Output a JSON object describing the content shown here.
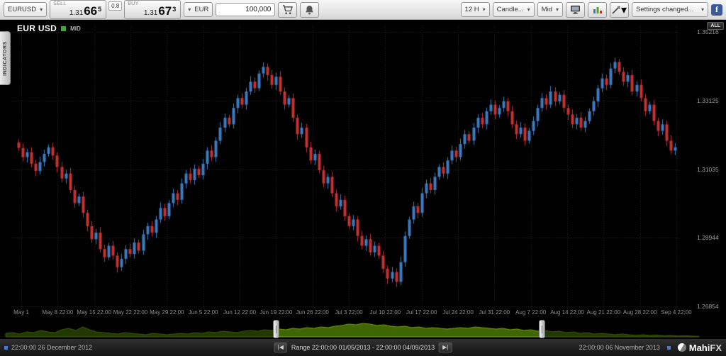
{
  "toolbar": {
    "symbol": "EURUSD",
    "sell": {
      "label": "SELL",
      "prefix": "1.31",
      "big": "66",
      "sup": "5"
    },
    "spread": "0.8",
    "buy": {
      "label": "BUY",
      "prefix": "1.31",
      "big": "67",
      "sup": "3"
    },
    "currency": "EUR",
    "amount": "100,000",
    "interval": "12 H",
    "chart_type": "Candle...",
    "price_type": "Mid",
    "settings": "Settings changed...",
    "facebook_letter": "f"
  },
  "chart": {
    "title": "EUR USD",
    "badge": "MID",
    "all_button": "ALL",
    "indicators_tab": "INDICATORS"
  },
  "chart_data": {
    "type": "candlestick",
    "title": "EUR USD",
    "interval": "12 H",
    "price_type": "Mid",
    "ylim": [
      1.26854,
      1.35216
    ],
    "y_ticks": [
      1.35216,
      1.33125,
      1.31035,
      1.28944,
      1.26854
    ],
    "x_tick_labels": [
      "May 1",
      "May 8 22:00",
      "May 15 22:00",
      "May 22 22:00",
      "May 29 22:00",
      "Jun 5 22:00",
      "Jun 12 22:00",
      "Jun 19 22:00",
      "Jun 26 22:00",
      "Jul 3 22:00",
      "Jul 10 22:00",
      "Jul 17 22:00",
      "Jul 24 22:00",
      "Jul 31 22:00",
      "Aug 7 22:00",
      "Aug 14 22:00",
      "Aug 21 22:00",
      "Aug 28 22:00",
      "Sep 4 22:00"
    ],
    "up_color": "#3d7cc2",
    "down_color": "#c63232",
    "first_open": 1.3185,
    "closes": [
      1.3168,
      1.314,
      1.3155,
      1.312,
      1.3098,
      1.3125,
      1.315,
      1.317,
      1.3145,
      1.311,
      1.3075,
      1.309,
      1.304,
      1.3,
      1.302,
      1.297,
      1.293,
      1.289,
      1.291,
      1.286,
      1.2835,
      1.287,
      1.284,
      1.2805,
      1.283,
      1.286,
      1.2845,
      1.288,
      1.2855,
      1.2905,
      1.293,
      1.291,
      1.295,
      1.2985,
      1.296,
      1.3,
      1.303,
      1.301,
      1.306,
      1.309,
      1.307,
      1.3105,
      1.3085,
      1.312,
      1.316,
      1.314,
      1.319,
      1.323,
      1.326,
      1.324,
      1.329,
      1.332,
      1.33,
      1.334,
      1.337,
      1.335,
      1.3395,
      1.3415,
      1.339,
      1.336,
      1.3385,
      1.334,
      1.33,
      1.332,
      1.326,
      1.321,
      1.323,
      1.317,
      1.313,
      1.315,
      1.31,
      1.306,
      1.308,
      1.303,
      1.299,
      1.301,
      1.296,
      1.293,
      1.295,
      1.29,
      1.287,
      1.289,
      1.285,
      1.287,
      1.284,
      1.28,
      1.277,
      1.279,
      1.276,
      1.282,
      1.29,
      1.295,
      1.299,
      1.297,
      1.303,
      1.306,
      1.304,
      1.308,
      1.311,
      1.309,
      1.313,
      1.316,
      1.314,
      1.318,
      1.321,
      1.319,
      1.323,
      1.326,
      1.324,
      1.328,
      1.33,
      1.327,
      1.329,
      1.331,
      1.328,
      1.324,
      1.321,
      1.323,
      1.319,
      1.322,
      1.325,
      1.329,
      1.332,
      1.33,
      1.334,
      1.331,
      1.333,
      1.329,
      1.327,
      1.324,
      1.326,
      1.323,
      1.325,
      1.328,
      1.331,
      1.335,
      1.338,
      1.336,
      1.341,
      1.343,
      1.34,
      1.337,
      1.339,
      1.334,
      1.336,
      1.332,
      1.328,
      1.33,
      1.325,
      1.322,
      1.324,
      1.319,
      1.316,
      1.317
    ]
  },
  "navigator": {
    "sel_start": 0.39,
    "sel_end": 0.773,
    "area_color": "#3e6602",
    "line_color": "#79a41c",
    "values": [
      0.25,
      0.3,
      0.2,
      0.35,
      0.3,
      0.45,
      0.35,
      0.3,
      0.5,
      0.6,
      0.45,
      0.7,
      0.5,
      0.35,
      0.3,
      0.25,
      0.2,
      0.3,
      0.25,
      0.2,
      0.15,
      0.25,
      0.2,
      0.15,
      0.2,
      0.25,
      0.2,
      0.3,
      0.25,
      0.35,
      0.3,
      0.4,
      0.35,
      0.3,
      0.4,
      0.45,
      0.4,
      0.5,
      0.45,
      0.55,
      0.5,
      0.6,
      0.55,
      0.65,
      0.6,
      0.7,
      0.65,
      0.75,
      0.8,
      0.9,
      0.85,
      0.95,
      0.9,
      0.8,
      0.85,
      0.75,
      0.7,
      0.75,
      0.65,
      0.7,
      0.6,
      0.65,
      0.6,
      0.55,
      0.6,
      0.65,
      0.6,
      0.7,
      0.65,
      0.6,
      0.55,
      0.6,
      0.5,
      0.55,
      0.45,
      0.5,
      0.4,
      0.45,
      0.35,
      0.4,
      0.3,
      0.35,
      0.25,
      0.3,
      0.2,
      0.25,
      0.2,
      0.15,
      0.2,
      0.15,
      0.1,
      0.15,
      0.1,
      0.12,
      0.08,
      0.1,
      0.06,
      0.08,
      0.05,
      0.04
    ]
  },
  "statusbar": {
    "left": "22:00:00 26 December 2012",
    "range": "Range 22:00:00 01/05/2013 - 22:00:00 04/09/2013",
    "prev": "|◀",
    "next": "▶|",
    "right": "22:00:00 06 November 2013",
    "logo": "Mahi",
    "logo2": "FX"
  }
}
